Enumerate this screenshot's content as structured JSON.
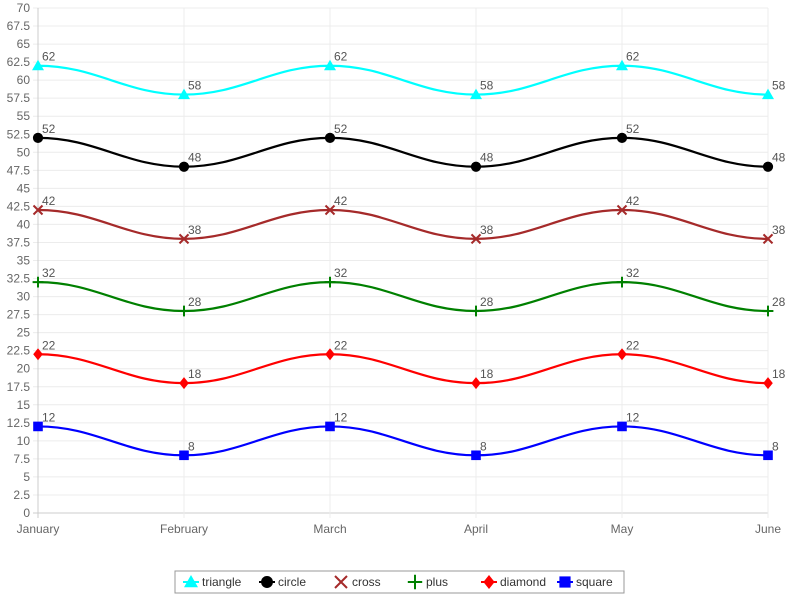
{
  "chart_data": {
    "type": "line",
    "title": "",
    "xlabel": "",
    "ylabel": "",
    "categories": [
      "January",
      "February",
      "March",
      "April",
      "May",
      "June"
    ],
    "ylim": [
      0,
      70
    ],
    "ystep": 2.5,
    "grid": true,
    "legend_position": "bottom",
    "series": [
      {
        "name": "triangle",
        "marker": "triangle",
        "color": "#00ffff",
        "values": [
          62,
          58,
          62,
          58,
          62,
          58
        ]
      },
      {
        "name": "circle",
        "marker": "circle",
        "color": "#000000",
        "values": [
          52,
          48,
          52,
          48,
          52,
          48
        ]
      },
      {
        "name": "cross",
        "marker": "cross",
        "color": "#a52a2a",
        "values": [
          42,
          38,
          42,
          38,
          42,
          38
        ]
      },
      {
        "name": "plus",
        "marker": "plus",
        "color": "#008000",
        "values": [
          32,
          28,
          32,
          28,
          32,
          28
        ]
      },
      {
        "name": "diamond",
        "marker": "diamond",
        "color": "#ff0000",
        "values": [
          22,
          18,
          22,
          18,
          22,
          18
        ]
      },
      {
        "name": "square",
        "marker": "square",
        "color": "#0000ff",
        "values": [
          12,
          8,
          12,
          8,
          12,
          8
        ]
      }
    ]
  }
}
